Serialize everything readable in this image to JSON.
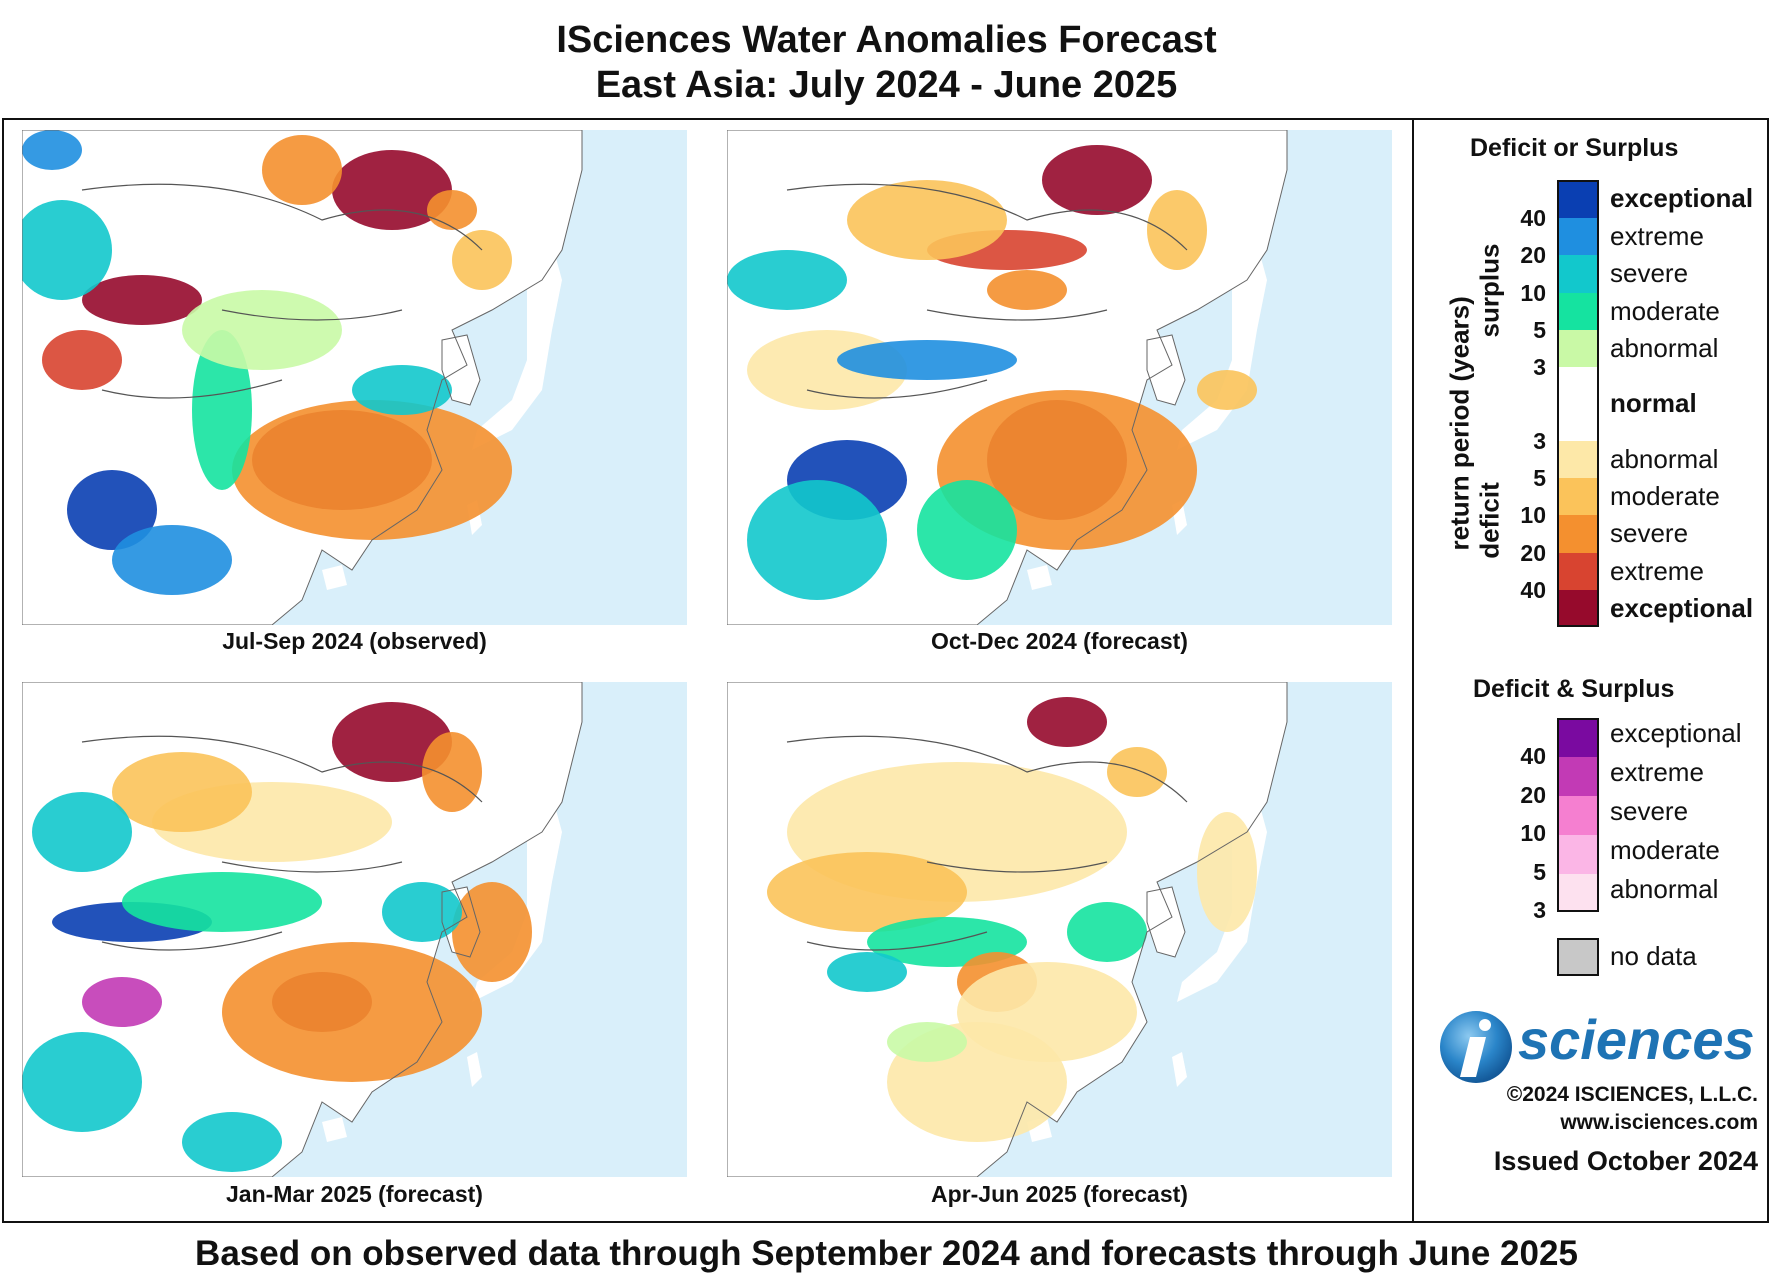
{
  "header": {
    "title_line1": "ISciences Water Anomalies Forecast",
    "title_line2": "East Asia: July 2024 - June 2025"
  },
  "panels": [
    {
      "caption": "Jul-Sep 2024 (observed)"
    },
    {
      "caption": "Oct-Dec 2024 (forecast)"
    },
    {
      "caption": "Jan-Mar 2025 (forecast)"
    },
    {
      "caption": "Apr-Jun 2025 (forecast)"
    }
  ],
  "legend": {
    "section1_title": "Deficit or Surplus",
    "axis_label": "return period (years)",
    "surplus_label": "surplus",
    "deficit_label": "deficit",
    "surplus_ticks": [
      "40",
      "20",
      "10",
      "5",
      "3"
    ],
    "deficit_ticks": [
      "3",
      "5",
      "10",
      "20",
      "40"
    ],
    "surplus": [
      {
        "label": "exceptional",
        "color": "#0a3fb2"
      },
      {
        "label": "extreme",
        "color": "#1f8fe0"
      },
      {
        "label": "severe",
        "color": "#12c8cc"
      },
      {
        "label": "moderate",
        "color": "#15e3a0"
      },
      {
        "label": "abnormal",
        "color": "#c9f9a6"
      }
    ],
    "normal": {
      "label": "normal",
      "color": "#ffffff"
    },
    "deficit": [
      {
        "label": "abnormal",
        "color": "#fde8a8"
      },
      {
        "label": "moderate",
        "color": "#fbc35a"
      },
      {
        "label": "severe",
        "color": "#f4902f"
      },
      {
        "label": "extreme",
        "color": "#d84430"
      },
      {
        "label": "exceptional",
        "color": "#960a2c"
      }
    ],
    "section2_title": "Deficit & Surplus",
    "both_ticks": [
      "40",
      "20",
      "10",
      "5",
      "3"
    ],
    "both": [
      {
        "label": "exceptional",
        "color": "#7a0aa0"
      },
      {
        "label": "extreme",
        "color": "#c23ab5"
      },
      {
        "label": "severe",
        "color": "#f57fd0"
      },
      {
        "label": "moderate",
        "color": "#fbb6e6"
      },
      {
        "label": "abnormal",
        "color": "#fde1ef"
      }
    ],
    "nodata": {
      "label": "no data",
      "color": "#c8c8c8"
    }
  },
  "branding": {
    "logo_text": "sciences",
    "copyright": "©2024 ISCIENCES, L.L.C.",
    "url": "www.isciences.com",
    "issued": "Issued October 2024"
  },
  "footer": "Based on observed data through September 2024 and forecasts through June 2025"
}
